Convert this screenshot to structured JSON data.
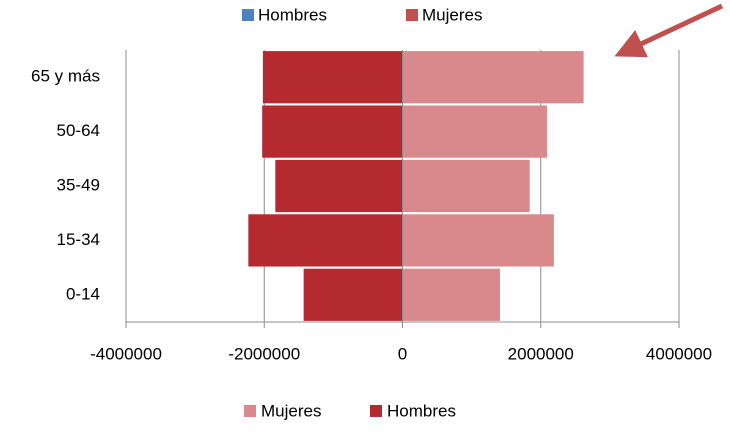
{
  "chart_data": {
    "type": "bar",
    "orientation": "horizontal",
    "stacked": true,
    "categories": [
      "0-14",
      "15-34",
      "35-49",
      "50-64",
      "65 y más"
    ],
    "series": [
      {
        "name": "Mujeres",
        "color": "#d9898c",
        "values": [
          1410000,
          2190000,
          1840000,
          2090000,
          2620000
        ]
      },
      {
        "name": "Hombres",
        "color": "#b52a2f",
        "values": [
          -1430000,
          -2230000,
          -1840000,
          -2030000,
          -2020000
        ]
      }
    ],
    "xlim": [
      -4000000,
      4000000
    ],
    "xticks": [
      -4000000,
      -2000000,
      0,
      2000000,
      4000000
    ],
    "grid": true,
    "legend": "bottom",
    "top_legend": [
      {
        "name": "Hombres",
        "color": "#4f81bd"
      },
      {
        "name": "Mujeres",
        "color": "#c0504d"
      }
    ]
  }
}
